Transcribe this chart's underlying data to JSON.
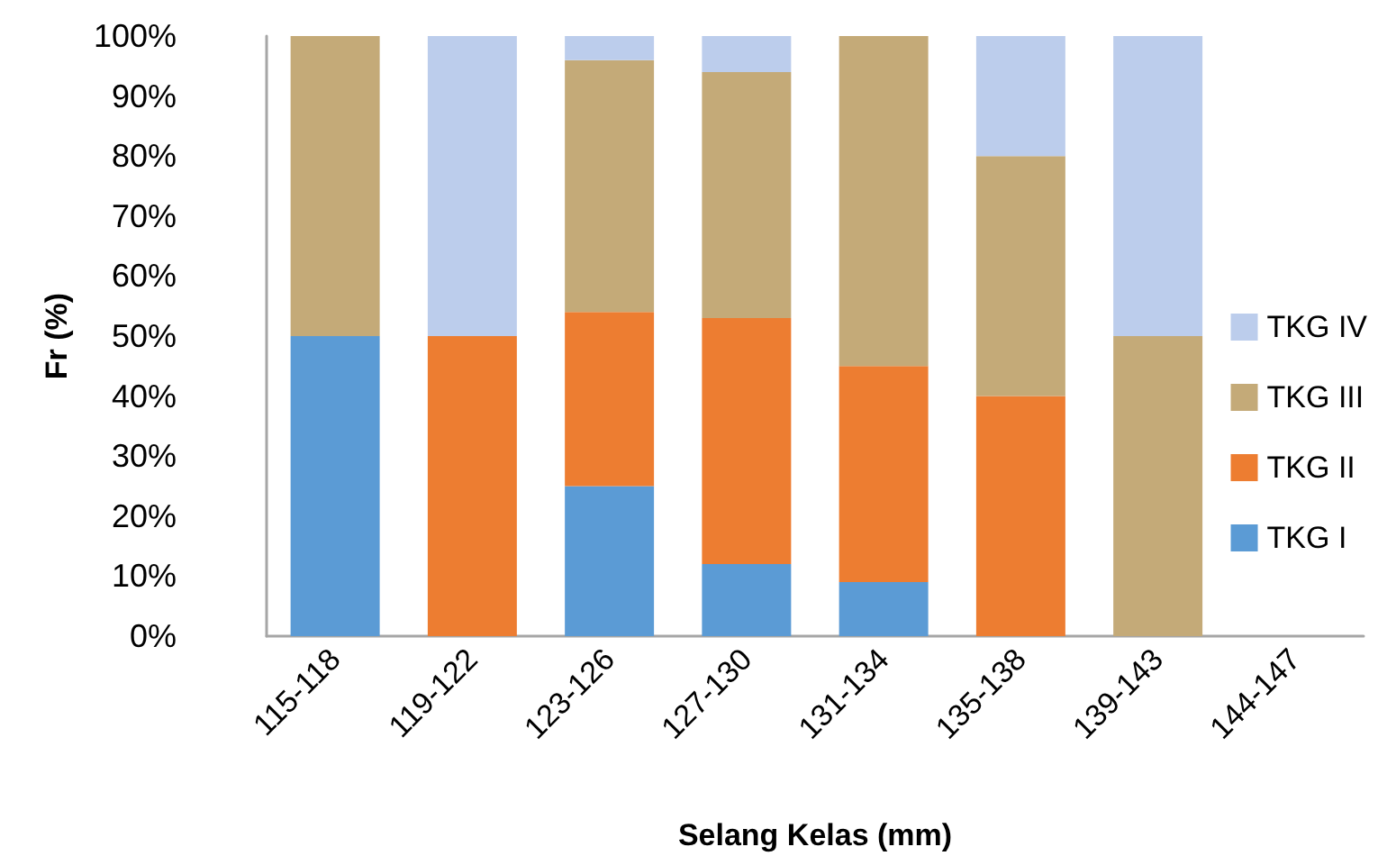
{
  "chart_data": {
    "type": "bar",
    "stacked": true,
    "categories": [
      "115-118",
      "119-122",
      "123-126",
      "127-130",
      "131-134",
      "135-138",
      "139-143",
      "144-147"
    ],
    "series": [
      {
        "name": "TKG I",
        "color": "#5b9bd5",
        "values": [
          50,
          null,
          25,
          12,
          9,
          null,
          null,
          null
        ]
      },
      {
        "name": "TKG II",
        "color": "#ed7d31",
        "values": [
          null,
          50,
          29,
          41,
          36,
          40,
          null,
          null
        ]
      },
      {
        "name": "TKG III",
        "color": "#c4aa78",
        "values": [
          50,
          null,
          42,
          41,
          55,
          40,
          50,
          null
        ]
      },
      {
        "name": "TKG IV",
        "color": "#bccdec",
        "values": [
          null,
          50,
          4,
          6,
          null,
          20,
          50,
          null
        ]
      }
    ],
    "xlabel": "Selang Kelas (mm)",
    "ylabel": "Fr (%)",
    "ylim": [
      0,
      100
    ],
    "yticks": [
      {
        "value": 0,
        "label": "0%"
      },
      {
        "value": 10,
        "label": "10%"
      },
      {
        "value": 20,
        "label": "20%"
      },
      {
        "value": 30,
        "label": "30%"
      },
      {
        "value": 40,
        "label": "40%"
      },
      {
        "value": 50,
        "label": "50%"
      },
      {
        "value": 60,
        "label": "60%"
      },
      {
        "value": 70,
        "label": "70%"
      },
      {
        "value": 80,
        "label": "80%"
      },
      {
        "value": 90,
        "label": "90%"
      },
      {
        "value": 100,
        "label": "100%"
      }
    ],
    "legend": "right",
    "grid": false
  }
}
